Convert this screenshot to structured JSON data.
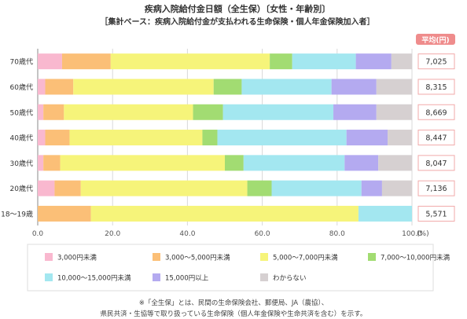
{
  "chart_data": {
    "type": "bar",
    "orientation": "horizontal",
    "stacked": true,
    "title": "疾病入院給付金日額（全生保）〔女性・年齢別〕",
    "subtitle": "［集計ベース：疾病入院給付金が支払われる生命保険・個人年金保険加入者］",
    "x_axis_unit": "(%)",
    "xlim": [
      0,
      100
    ],
    "x_ticks": [
      "0.0",
      "20.0",
      "40.0",
      "60.0",
      "80.0",
      "100.0"
    ],
    "grid": true,
    "legend_position": "bottom",
    "average_header": "平均(円)",
    "categories": [
      "70歳代",
      "60歳代",
      "50歳代",
      "40歳代",
      "30歳代",
      "20歳代",
      "18～19歳"
    ],
    "averages": [
      "7,025",
      "8,315",
      "8,669",
      "8,447",
      "8,047",
      "7,136",
      "5,571"
    ],
    "series": [
      {
        "name": "3,000円未満",
        "color": "#f9b8cf",
        "values": [
          6.5,
          2.0,
          1.5,
          2.0,
          1.5,
          4.5,
          0.0
        ]
      },
      {
        "name": "3,000～5,000円未満",
        "color": "#fbbf77",
        "values": [
          13.0,
          7.5,
          5.5,
          6.5,
          4.5,
          7.0,
          14.2
        ]
      },
      {
        "name": "5,000～7,000円未満",
        "color": "#f6f47a",
        "values": [
          42.5,
          37.5,
          34.5,
          35.5,
          44.0,
          44.5,
          71.5
        ]
      },
      {
        "name": "7,000～10,000円未満",
        "color": "#a2dc72",
        "values": [
          6.0,
          7.5,
          8.0,
          4.0,
          5.0,
          6.5,
          0.0
        ]
      },
      {
        "name": "10,000～15,000円未満",
        "color": "#a3e7f0",
        "values": [
          17.0,
          24.0,
          29.5,
          34.5,
          27.0,
          24.0,
          14.3
        ]
      },
      {
        "name": "15,000円以上",
        "color": "#b4aaf0",
        "values": [
          9.5,
          12.0,
          11.5,
          11.0,
          9.0,
          5.5,
          0.0
        ]
      },
      {
        "name": "わからない",
        "color": "#d6d0d1",
        "values": [
          5.5,
          9.5,
          9.5,
          6.5,
          9.0,
          8.0,
          0.0
        ]
      }
    ],
    "footnote_lines": [
      "※「全生保」とは、民間の生命保険会社、郵便局、JA（農協）、",
      "県民共済・生協等で取り扱っている生命保険（個人年金保険や生命共済を含む）を示す。"
    ]
  }
}
